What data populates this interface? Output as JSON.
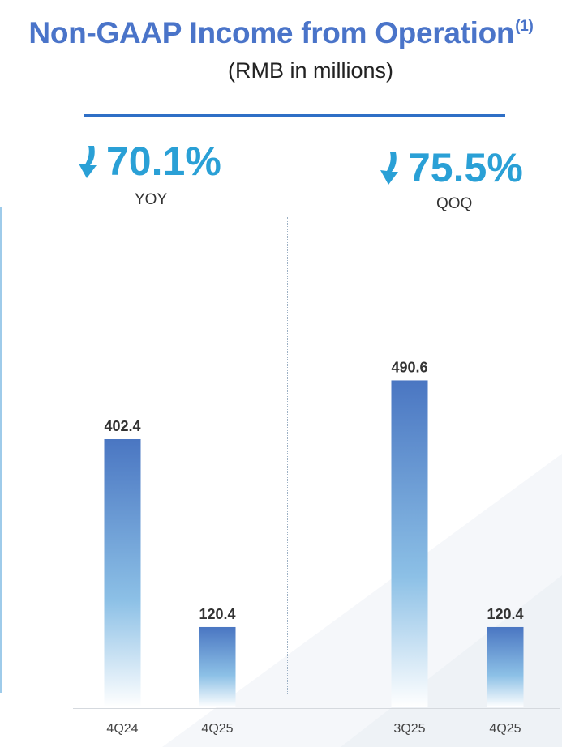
{
  "header": {
    "title": "Non-GAAP Income from Operation",
    "title_footnote": "(1)",
    "subtitle": "(RMB in millions)"
  },
  "metrics": {
    "yoy": {
      "value": "70.1%",
      "label": "YOY",
      "direction": "down-arrow-icon"
    },
    "qoq": {
      "value": "75.5%",
      "label": "QOQ",
      "direction": "down-arrow-icon"
    }
  },
  "colors": {
    "title": "#4a74c9",
    "metric": "#2aa0d6",
    "bar_top": "#4a76c2",
    "bar_bottom": "#ffffff"
  },
  "chart_data": [
    {
      "type": "bar",
      "categories": [
        "4Q24",
        "4Q25"
      ],
      "values": [
        402.4,
        120.4
      ],
      "data_labels": [
        "402.4",
        "120.4"
      ],
      "ylim": [
        0,
        550
      ]
    },
    {
      "type": "bar",
      "categories": [
        "3Q25",
        "4Q25"
      ],
      "values": [
        490.6,
        120.4
      ],
      "data_labels": [
        "490.6",
        "120.4"
      ],
      "ylim": [
        0,
        550
      ]
    }
  ]
}
